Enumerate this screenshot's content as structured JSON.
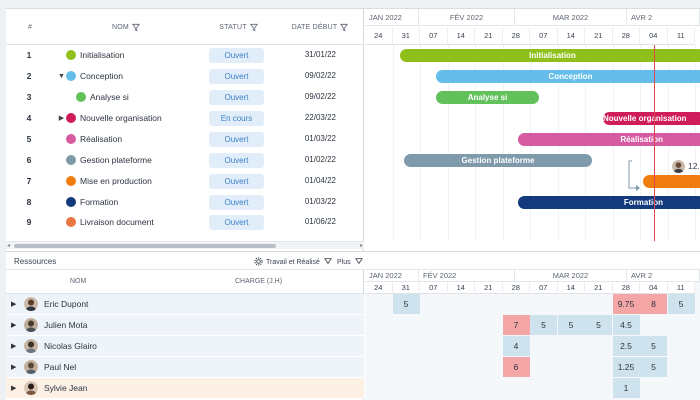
{
  "task_grid": {
    "columns": {
      "num": "#",
      "name": "NOM",
      "status": "STATUT",
      "start": "DATE DÉBUT"
    },
    "rows": [
      {
        "num": "1",
        "name": "Initialisation",
        "color": "#8fbf1b",
        "status": "Ouvert",
        "start": "31/01/22",
        "caret": "",
        "indent": 0
      },
      {
        "num": "2",
        "name": "Conception",
        "color": "#65bde9",
        "status": "Ouvert",
        "start": "09/02/22",
        "caret": "▼",
        "indent": 0
      },
      {
        "num": "3",
        "name": "Analyse si",
        "color": "#62c15a",
        "status": "Ouvert",
        "start": "09/02/22",
        "caret": "",
        "indent": 1
      },
      {
        "num": "4",
        "name": "Nouvelle organisation",
        "color": "#cf1c5a",
        "status": "En cours",
        "start": "22/03/22",
        "caret": "▶",
        "indent": 0
      },
      {
        "num": "5",
        "name": "Réalisation",
        "color": "#d65ba0",
        "status": "Ouvert",
        "start": "01/03/22",
        "caret": "",
        "indent": 0
      },
      {
        "num": "6",
        "name": "Gestion plateforme",
        "color": "#7f9aab",
        "status": "Ouvert",
        "start": "01/02/22",
        "caret": "",
        "indent": 0
      },
      {
        "num": "7",
        "name": "Mise en production",
        "color": "#f17c10",
        "status": "Ouvert",
        "start": "01/04/22",
        "caret": "",
        "indent": 0
      },
      {
        "num": "8",
        "name": "Formation",
        "color": "#123a7c",
        "status": "Ouvert",
        "start": "01/03/22",
        "caret": "",
        "indent": 0
      },
      {
        "num": "9",
        "name": "Livraison document",
        "color": "#e97540",
        "status": "Ouvert",
        "start": "01/06/22",
        "caret": "",
        "indent": 0
      }
    ]
  },
  "timeline": {
    "months": [
      "JAN 2022",
      "FÉV 2022",
      "MAR 2022",
      "AVR 2"
    ],
    "weeks": [
      "24",
      "31",
      "07",
      "14",
      "21",
      "28",
      "07",
      "14",
      "21",
      "28",
      "04",
      "11"
    ]
  },
  "gantt_bars": [
    {
      "label": "Initialisation",
      "color": "#8fbf1b",
      "row": 0
    },
    {
      "label": "Conception",
      "color": "#65bde9",
      "row": 1
    },
    {
      "label": "Analyse si",
      "color": "#62c15a",
      "row": 2
    },
    {
      "label": "Nouvelle organisation",
      "color": "#cf1c5a",
      "row": 3
    },
    {
      "label": "Réalisation",
      "color": "#d65ba0",
      "row": 4
    },
    {
      "label": "Gestion plateforme",
      "color": "#7f9aab",
      "row": 5
    },
    {
      "label": "",
      "color": "#f17c10",
      "row": 6
    },
    {
      "label": "Formation",
      "color": "#123a7c",
      "row": 7
    }
  ],
  "gantt_annotation": "12.",
  "resources": {
    "title": "Ressources",
    "view_label": "Travail et Réalisé",
    "more_label": "Plus",
    "columns": {
      "name": "NOM",
      "load": "CHARGE (J.H)"
    },
    "timeline": {
      "months": [
        "JAN 2022",
        "FÉV 2022",
        "MAR 2022",
        "AVR 2"
      ],
      "weeks": [
        "24",
        "31",
        "07",
        "14",
        "21",
        "28",
        "07",
        "14",
        "21",
        "28",
        "04",
        "11"
      ]
    },
    "rows": [
      {
        "name": "Eric Dupont",
        "cells": [
          "",
          "5",
          "",
          "",
          "",
          "",
          "",
          "",
          "",
          "9.75",
          "8",
          "5"
        ],
        "over": [
          9,
          10
        ]
      },
      {
        "name": "Julien Mota",
        "cells": [
          "",
          "",
          "",
          "",
          "",
          "7",
          "5",
          "5",
          "5",
          "4.5",
          "",
          ""
        ],
        "over": [
          5
        ]
      },
      {
        "name": "Nicolas Glairo",
        "cells": [
          "",
          "",
          "",
          "",
          "",
          "4",
          "",
          "",
          "",
          "2.5",
          "5",
          ""
        ],
        "over": []
      },
      {
        "name": "Paul Nel",
        "cells": [
          "",
          "",
          "",
          "",
          "",
          "6",
          "",
          "",
          "",
          "1.25",
          "5",
          ""
        ],
        "over": [
          5
        ]
      },
      {
        "name": "Sylvie Jean",
        "cells": [
          "",
          "",
          "",
          "",
          "",
          "",
          "",
          "",
          "",
          "1",
          "",
          ""
        ],
        "over": []
      }
    ]
  }
}
